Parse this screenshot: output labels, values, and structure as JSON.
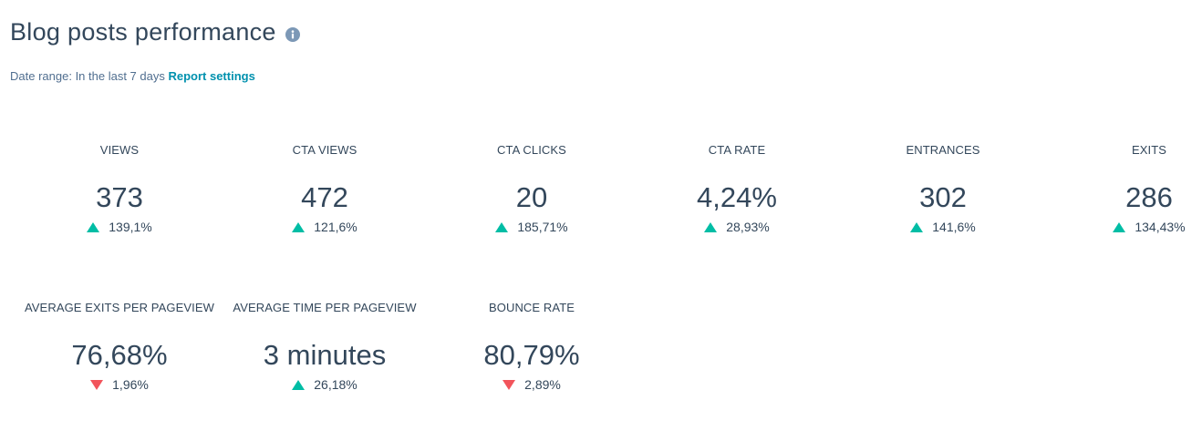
{
  "header": {
    "title": "Blog posts performance",
    "info_icon": "info-icon"
  },
  "date_range": {
    "label": "Date range:",
    "value": "In the last 7 days",
    "settings_link": "Report settings"
  },
  "colors": {
    "up": "#00bda5",
    "down": "#f2545b",
    "link": "#0091ae",
    "text": "#33475b"
  },
  "metrics": [
    {
      "label": "VIEWS",
      "value": "373",
      "change": "139,1%",
      "direction": "up"
    },
    {
      "label": "CTA VIEWS",
      "value": "472",
      "change": "121,6%",
      "direction": "up"
    },
    {
      "label": "CTA CLICKS",
      "value": "20",
      "change": "185,71%",
      "direction": "up"
    },
    {
      "label": "CTA RATE",
      "value": "4,24%",
      "change": "28,93%",
      "direction": "up"
    },
    {
      "label": "ENTRANCES",
      "value": "302",
      "change": "141,6%",
      "direction": "up"
    },
    {
      "label": "EXITS",
      "value": "286",
      "change": "134,43%",
      "direction": "up"
    },
    {
      "label": "AVERAGE EXITS PER PAGEVIEW",
      "value": "76,68%",
      "change": "1,96%",
      "direction": "down"
    },
    {
      "label": "AVERAGE TIME PER PAGEVIEW",
      "value": "3 minutes",
      "change": "26,18%",
      "direction": "up"
    },
    {
      "label": "BOUNCE RATE",
      "value": "80,79%",
      "change": "2,89%",
      "direction": "down"
    }
  ]
}
